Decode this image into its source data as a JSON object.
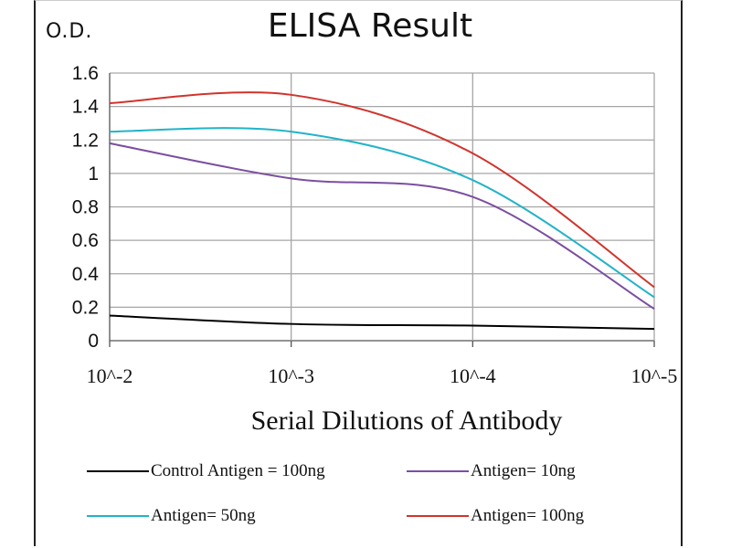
{
  "chart_data": {
    "type": "line",
    "title": "ELISA Result",
    "ylabel": "O.D.",
    "xlabel": "Serial Dilutions  of Antibody",
    "categories": [
      "10^-2",
      "10^-3",
      "10^-4",
      "10^-5"
    ],
    "yticks": [
      "0",
      "0.2",
      "0.4",
      "0.6",
      "0.8",
      "1",
      "1.2",
      "1.4",
      "1.6"
    ],
    "ylim": [
      0,
      1.6
    ],
    "grid": true,
    "legend_position": "bottom",
    "series": [
      {
        "name": "Control Antigen = 100ng",
        "color": "#000000",
        "values": [
          0.15,
          0.1,
          0.09,
          0.07
        ]
      },
      {
        "name": "Antigen= 10ng",
        "color": "#7b4fa0",
        "values": [
          1.18,
          0.97,
          0.86,
          0.19
        ]
      },
      {
        "name": "Antigen= 50ng",
        "color": "#22b3c8",
        "values": [
          1.25,
          1.25,
          0.96,
          0.26
        ]
      },
      {
        "name": "Antigen= 100ng",
        "color": "#d0342c",
        "values": [
          1.42,
          1.47,
          1.12,
          0.32
        ]
      }
    ]
  }
}
